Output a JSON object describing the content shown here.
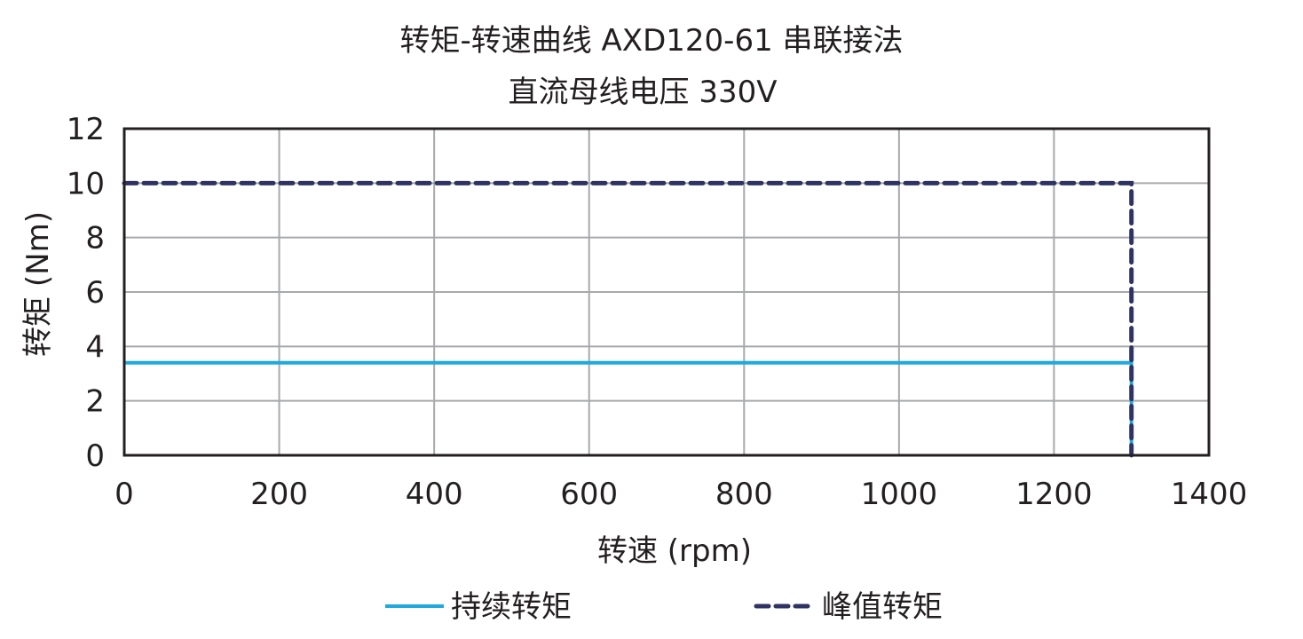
{
  "chart_data": {
    "type": "line",
    "title": "转矩-转速曲线 AXD120-61 串联接法",
    "subtitle": "直流母线电压 330V",
    "xlabel": "转速 (rpm)",
    "ylabel": "转矩 (Nm)",
    "xlim": [
      0,
      1400
    ],
    "ylim": [
      0,
      12
    ],
    "x_ticks": [
      "0",
      "200",
      "400",
      "600",
      "800",
      "1000",
      "1200",
      "1400"
    ],
    "y_ticks": [
      "0",
      "2",
      "4",
      "6",
      "8",
      "10",
      "12"
    ],
    "grid": true,
    "legend_position": "bottom",
    "series": [
      {
        "name": "持续转矩",
        "style": "solid",
        "color": "#1fa9dd",
        "x": [
          0,
          1300,
          1300
        ],
        "y": [
          3.4,
          3.4,
          0
        ]
      },
      {
        "name": "峰值转矩",
        "style": "dashed",
        "color": "#2e3363",
        "x": [
          0,
          1300,
          1300
        ],
        "y": [
          10,
          10,
          0
        ]
      }
    ]
  },
  "legend": {
    "continuous": "持续转矩",
    "peak": "峰值转矩"
  }
}
